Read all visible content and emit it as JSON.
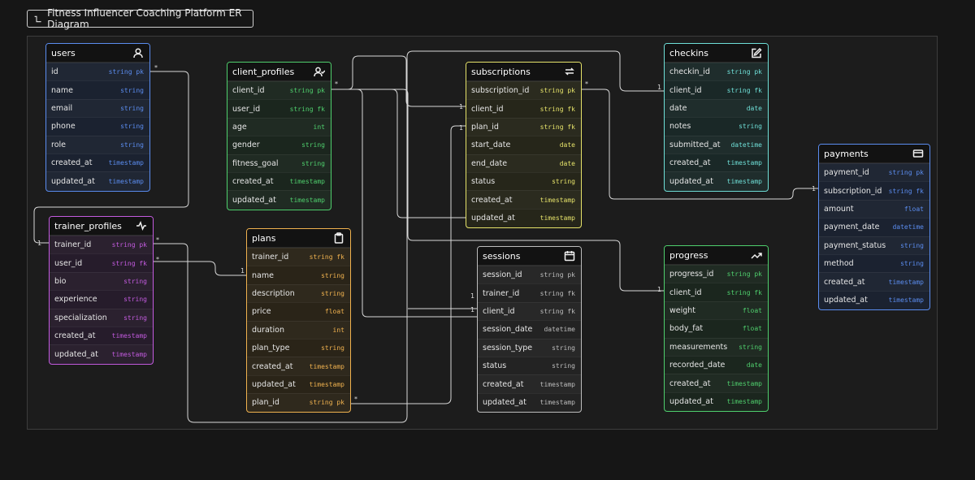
{
  "title": "Fitness Influencer Coaching Platform ER Diagram",
  "icons": {
    "title": "diagram-icon"
  },
  "colors": {
    "users": "#5b8df0",
    "client_profiles": "#4fcf6d",
    "subscriptions": "#e6e36a",
    "checkins": "#6fe0d8",
    "payments": "#5b8df0",
    "trainer_profiles": "#c45be0",
    "plans": "#f0b24f",
    "sessions": "#bdbdbd",
    "progress": "#4fcf6d"
  },
  "entities": {
    "users": {
      "name": "users",
      "icon": "user-icon",
      "fields": [
        {
          "name": "id",
          "type": "string  pk"
        },
        {
          "name": "name",
          "type": "string"
        },
        {
          "name": "email",
          "type": "string"
        },
        {
          "name": "phone",
          "type": "string"
        },
        {
          "name": "role",
          "type": "string"
        },
        {
          "name": "created_at",
          "type": "timestamp"
        },
        {
          "name": "updated_at",
          "type": "timestamp"
        }
      ]
    },
    "client_profiles": {
      "name": "client_profiles",
      "icon": "user-check-icon",
      "fields": [
        {
          "name": "client_id",
          "type": "string  pk"
        },
        {
          "name": "user_id",
          "type": "string  fk"
        },
        {
          "name": "age",
          "type": "int"
        },
        {
          "name": "gender",
          "type": "string"
        },
        {
          "name": "fitness_goal",
          "type": "string"
        },
        {
          "name": "created_at",
          "type": "timestamp"
        },
        {
          "name": "updated_at",
          "type": "timestamp"
        }
      ]
    },
    "subscriptions": {
      "name": "subscriptions",
      "icon": "repeat-icon",
      "fields": [
        {
          "name": "subscription_id",
          "type": "string  pk"
        },
        {
          "name": "client_id",
          "type": "string  fk"
        },
        {
          "name": "plan_id",
          "type": "string  fk"
        },
        {
          "name": "start_date",
          "type": "date"
        },
        {
          "name": "end_date",
          "type": "date"
        },
        {
          "name": "status",
          "type": "string"
        },
        {
          "name": "created_at",
          "type": "timestamp"
        },
        {
          "name": "updated_at",
          "type": "timestamp"
        }
      ]
    },
    "checkins": {
      "name": "checkins",
      "icon": "edit-icon",
      "fields": [
        {
          "name": "checkin_id",
          "type": "string  pk"
        },
        {
          "name": "client_id",
          "type": "string  fk"
        },
        {
          "name": "date",
          "type": "date"
        },
        {
          "name": "notes",
          "type": "string"
        },
        {
          "name": "submitted_at",
          "type": "datetime"
        },
        {
          "name": "created_at",
          "type": "timestamp"
        },
        {
          "name": "updated_at",
          "type": "timestamp"
        }
      ]
    },
    "payments": {
      "name": "payments",
      "icon": "credit-card-icon",
      "fields": [
        {
          "name": "payment_id",
          "type": "string  pk"
        },
        {
          "name": "subscription_id",
          "type": "string  fk"
        },
        {
          "name": "amount",
          "type": "float"
        },
        {
          "name": "payment_date",
          "type": "datetime"
        },
        {
          "name": "payment_status",
          "type": "string"
        },
        {
          "name": "method",
          "type": "string"
        },
        {
          "name": "created_at",
          "type": "timestamp"
        },
        {
          "name": "updated_at",
          "type": "timestamp"
        }
      ]
    },
    "trainer_profiles": {
      "name": "trainer_profiles",
      "icon": "activity-icon",
      "fields": [
        {
          "name": "trainer_id",
          "type": "string  pk"
        },
        {
          "name": "user_id",
          "type": "string  fk"
        },
        {
          "name": "bio",
          "type": "string"
        },
        {
          "name": "experience",
          "type": "string"
        },
        {
          "name": "specialization",
          "type": "string"
        },
        {
          "name": "created_at",
          "type": "timestamp"
        },
        {
          "name": "updated_at",
          "type": "timestamp"
        }
      ]
    },
    "plans": {
      "name": "plans",
      "icon": "clipboard-icon",
      "fields": [
        {
          "name": "trainer_id",
          "type": "string  fk"
        },
        {
          "name": "name",
          "type": "string"
        },
        {
          "name": "description",
          "type": "string"
        },
        {
          "name": "price",
          "type": "float"
        },
        {
          "name": "duration",
          "type": "int"
        },
        {
          "name": "plan_type",
          "type": "string"
        },
        {
          "name": "created_at",
          "type": "timestamp"
        },
        {
          "name": "updated_at",
          "type": "timestamp"
        },
        {
          "name": "plan_id",
          "type": "string  pk"
        }
      ]
    },
    "sessions": {
      "name": "sessions",
      "icon": "calendar-icon",
      "fields": [
        {
          "name": "session_id",
          "type": "string  pk"
        },
        {
          "name": "trainer_id",
          "type": "string  fk"
        },
        {
          "name": "client_id",
          "type": "string  fk"
        },
        {
          "name": "session_date",
          "type": "datetime"
        },
        {
          "name": "session_type",
          "type": "string"
        },
        {
          "name": "status",
          "type": "string"
        },
        {
          "name": "created_at",
          "type": "timestamp"
        },
        {
          "name": "updated_at",
          "type": "timestamp"
        }
      ]
    },
    "progress": {
      "name": "progress",
      "icon": "trending-up-icon",
      "fields": [
        {
          "name": "progress_id",
          "type": "string  pk"
        },
        {
          "name": "client_id",
          "type": "string  fk"
        },
        {
          "name": "weight",
          "type": "float"
        },
        {
          "name": "body_fat",
          "type": "float"
        },
        {
          "name": "measurements",
          "type": "string"
        },
        {
          "name": "recorded_date",
          "type": "date"
        },
        {
          "name": "created_at",
          "type": "timestamp"
        },
        {
          "name": "updated_at",
          "type": "timestamp"
        }
      ]
    }
  },
  "cardinality": {
    "one": "1",
    "many": "*"
  }
}
